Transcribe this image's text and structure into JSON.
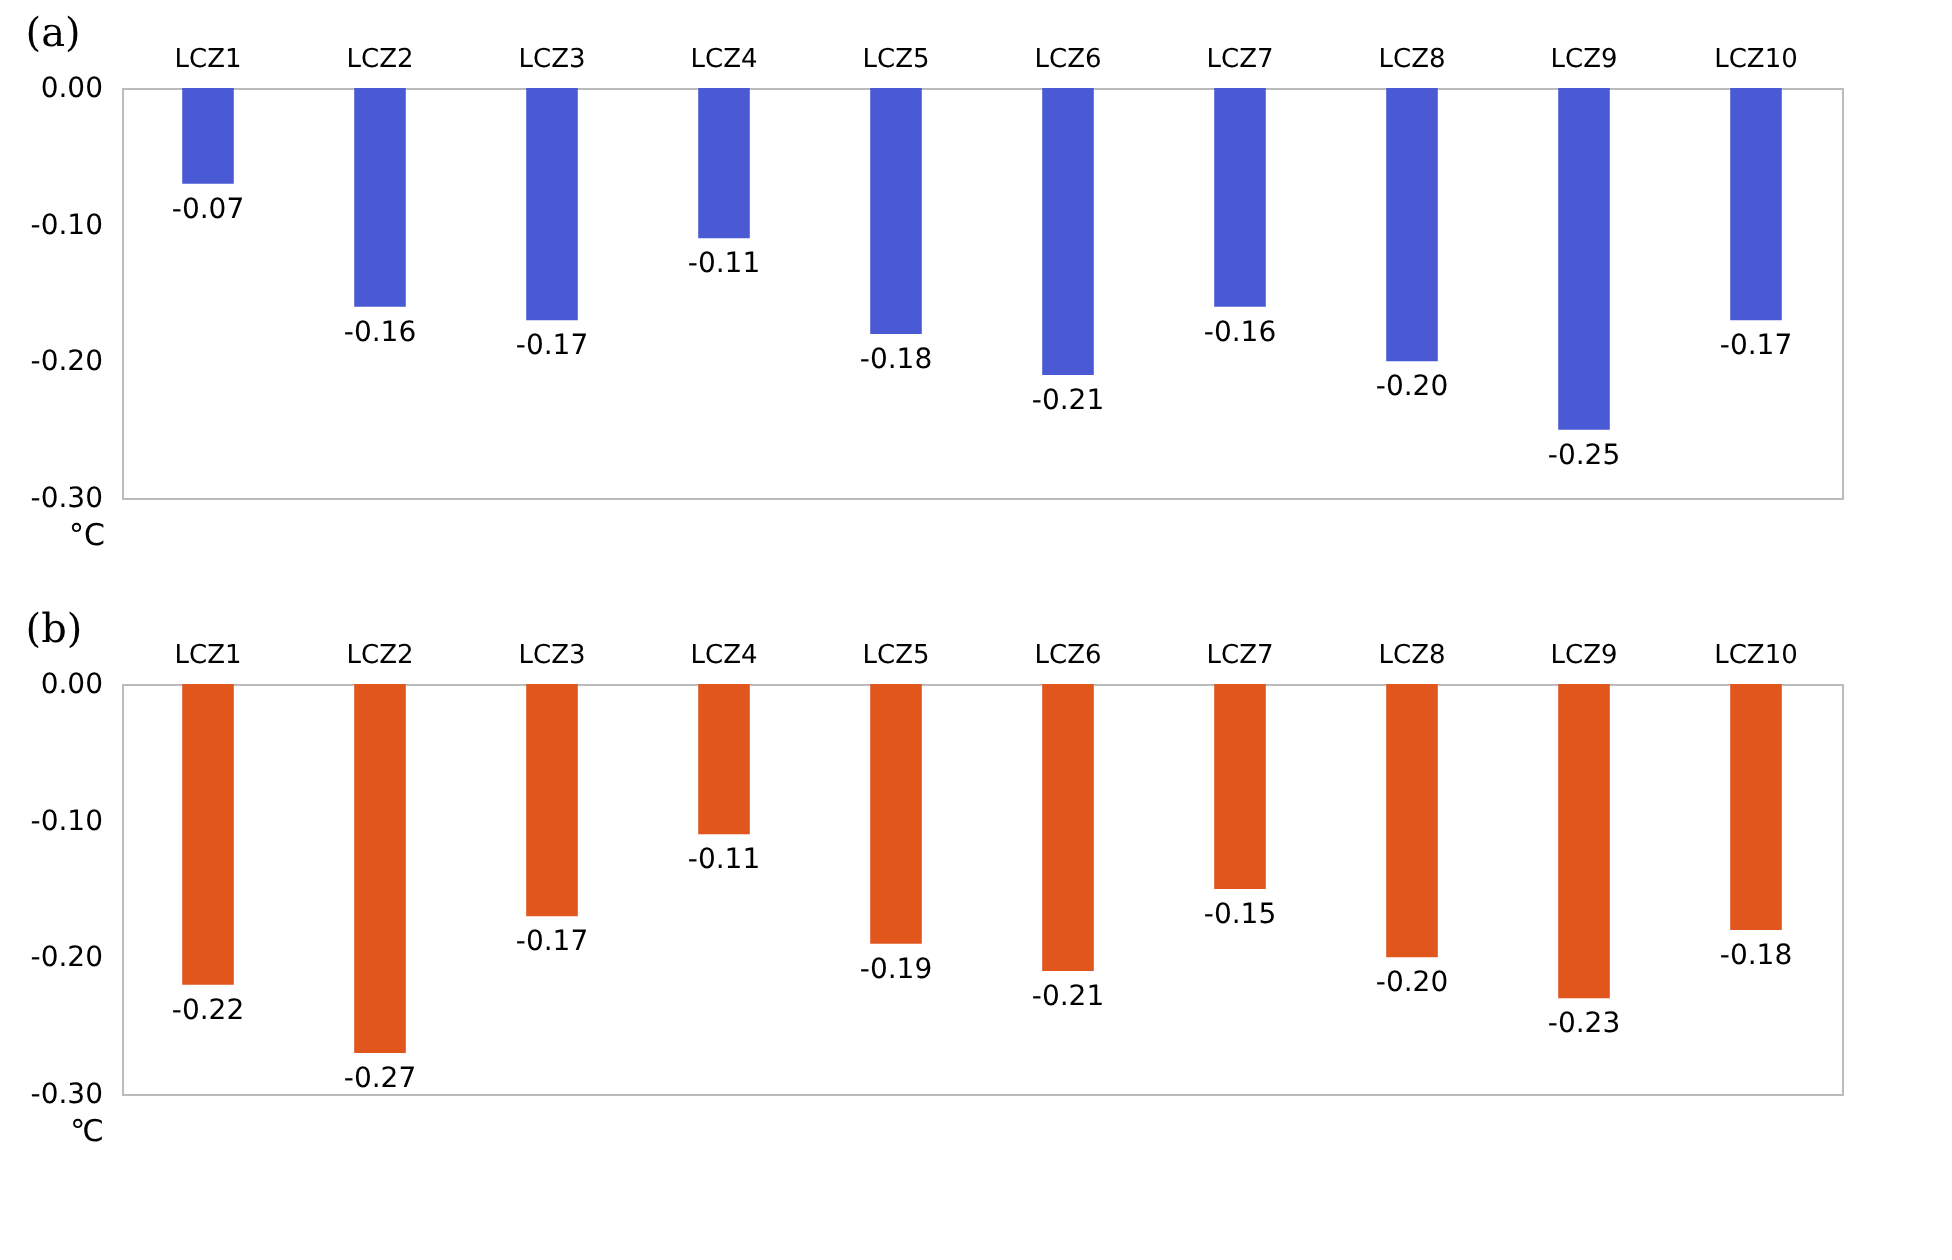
{
  "chart_data": [
    {
      "type": "bar",
      "title": "(a)",
      "ylabel": "°C",
      "categories": [
        "LCZ1",
        "LCZ2",
        "LCZ3",
        "LCZ4",
        "LCZ5",
        "LCZ6",
        "LCZ7",
        "LCZ8",
        "LCZ9",
        "LCZ10"
      ],
      "values": [
        -0.07,
        -0.16,
        -0.17,
        -0.11,
        -0.18,
        -0.21,
        -0.16,
        -0.2,
        -0.25,
        -0.17
      ],
      "value_labels": [
        "-0.07",
        "-0.16",
        "-0.17",
        "-0.11",
        "-0.18",
        "-0.21",
        "-0.16",
        "-0.20",
        "-0.25",
        "-0.17"
      ],
      "color": "#4a5ad4",
      "ylim": [
        -0.3,
        0
      ],
      "yticks": [
        {
          "value": -0.3,
          "label": "-0.30"
        },
        {
          "value": -0.2,
          "label": "-0.20"
        },
        {
          "value": -0.1,
          "label": "-0.10"
        },
        {
          "value": 0,
          "label": "0.00"
        }
      ],
      "grid": false
    },
    {
      "type": "bar",
      "title": "(b)",
      "ylabel": "℃",
      "categories": [
        "LCZ1",
        "LCZ2",
        "LCZ3",
        "LCZ4",
        "LCZ5",
        "LCZ6",
        "LCZ7",
        "LCZ8",
        "LCZ9",
        "LCZ10"
      ],
      "values": [
        -0.22,
        -0.27,
        -0.17,
        -0.11,
        -0.19,
        -0.21,
        -0.15,
        -0.2,
        -0.23,
        -0.18
      ],
      "value_labels": [
        "-0.22",
        "-0.27",
        "-0.17",
        "-0.11",
        "-0.19",
        "-0.21",
        "-0.15",
        "-0.20",
        "-0.23",
        "-0.18"
      ],
      "color": "#e0561c",
      "ylim": [
        -0.3,
        0
      ],
      "yticks": [
        {
          "value": -0.3,
          "label": "-0.30"
        },
        {
          "value": -0.2,
          "label": "-0.20"
        },
        {
          "value": -0.1,
          "label": "-0.10"
        },
        {
          "value": 0,
          "label": "0.00"
        }
      ],
      "grid": false
    }
  ]
}
